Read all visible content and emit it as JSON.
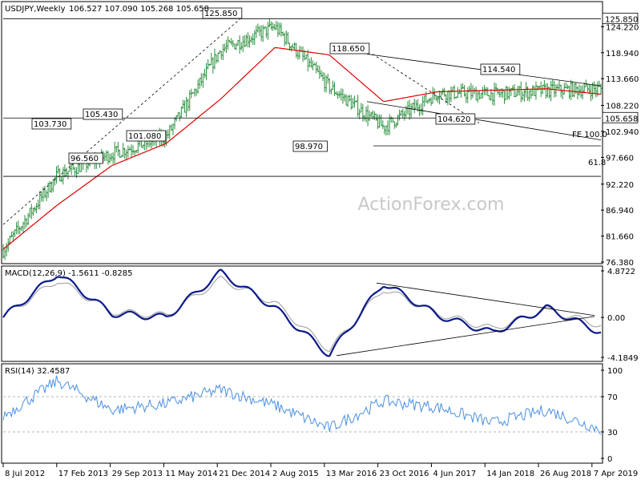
{
  "header": {
    "symbol": "USDJPY,Weekly",
    "ohlc": "106.527 107.090 105.268 105.658"
  },
  "watermark": "ActionForex.com",
  "chart_data": [
    {
      "type": "candlestick",
      "name": "price",
      "ylim": [
        76.38,
        129.0
      ],
      "y_ticks": [
        {
          "value": 124.22,
          "label": "124.220"
        },
        {
          "value": 118.94,
          "label": "118.940"
        },
        {
          "value": 113.66,
          "label": "113.660"
        },
        {
          "value": 108.22,
          "label": "108.220"
        },
        {
          "value": 102.94,
          "label": "102.940"
        },
        {
          "value": 97.66,
          "label": "97.660"
        },
        {
          "value": 92.22,
          "label": "92.220"
        },
        {
          "value": 86.94,
          "label": "86.940"
        },
        {
          "value": 81.66,
          "label": "81.660"
        },
        {
          "value": 76.38,
          "label": "76.380"
        }
      ],
      "price_markers": [
        {
          "value": 125.85,
          "label": "125.850"
        },
        {
          "value": 105.658,
          "label": "105.658"
        }
      ],
      "annotations": [
        {
          "label": "125.850",
          "x": "21 Dec 2014",
          "value": 125.85
        },
        {
          "label": "118.650",
          "x": "Jun 2016",
          "value": 118.65
        },
        {
          "label": "114.540",
          "x": "Sep 2018",
          "value": 114.54
        },
        {
          "label": "105.430",
          "x": "Sep 2013",
          "value": 105.43
        },
        {
          "label": "103.730",
          "x": "Feb 2013",
          "value": 103.73
        },
        {
          "label": "104.620",
          "x": "Mar 2018",
          "value": 104.62
        },
        {
          "label": "101.080",
          "x": "Jan 2014",
          "value": 101.08
        },
        {
          "label": "96.560",
          "x": "Jul 2013",
          "value": 96.56
        },
        {
          "label": "98.970",
          "x": "Jun 2016",
          "value": 98.97
        },
        {
          "label": "FE 100.0",
          "x": "Apr 2019",
          "value": 100.0
        },
        {
          "label": "61.8",
          "x": "Apr 2019",
          "value": 93.8
        }
      ],
      "horizontal_levels": [
        125.85,
        105.658,
        100.0,
        93.8
      ],
      "series": [
        {
          "name": "",
          "kind": "ohlc-close",
          "x": [
            "8 Jul 2012",
            "17 Feb 2013",
            "29 Sep 2013",
            "11 May 2014",
            "21 Dec 2014",
            "2 Aug 2015",
            "13 Mar 2016",
            "23 Oct 2016",
            "4 Jun 2017",
            "14 Jan 2018",
            "26 Aug 2018",
            "7 Apr 2019"
          ],
          "values": [
            78.8,
            94.0,
            98.4,
            101.8,
            119.5,
            124.2,
            112.0,
            103.8,
            110.8,
            110.5,
            111.2,
            111.6
          ]
        },
        {
          "name": "",
          "kind": "moving-average",
          "color": "#e00000",
          "values": [
            79.0,
            88.0,
            96.0,
            100.5,
            109.5,
            120.0,
            118.5,
            109.0,
            111.0,
            111.3,
            111.6,
            110.5
          ]
        }
      ]
    },
    {
      "type": "line",
      "name": "MACD",
      "legend": "MACD(12,26,9) -1.5611 -0.8285",
      "y_ticks": [
        {
          "value": 4.8722,
          "label": "4.8722"
        },
        {
          "value": 0.0,
          "label": "0.00"
        },
        {
          "value": -4.1849,
          "label": "-4.1849"
        }
      ],
      "series": [
        {
          "name": "",
          "color": "#0b1a8a",
          "values": [
            0.0,
            4.6,
            0.4,
            0.0,
            4.7,
            1.0,
            -3.9,
            3.6,
            0.2,
            -1.6,
            1.0,
            -1.56
          ]
        },
        {
          "name": "",
          "color": "#9a9a9a",
          "values": [
            0.1,
            3.9,
            0.6,
            0.2,
            4.0,
            1.5,
            -3.4,
            3.0,
            0.4,
            -1.2,
            0.8,
            -0.83
          ]
        }
      ]
    },
    {
      "type": "line",
      "name": "RSI",
      "legend": "RSI(14) 32.4587",
      "ylim": [
        0,
        100
      ],
      "y_ticks": [
        {
          "value": 100,
          "label": "100"
        },
        {
          "value": 70,
          "label": "70"
        },
        {
          "value": 30,
          "label": "30"
        },
        {
          "value": 0,
          "label": "0"
        }
      ],
      "series": [
        {
          "name": "",
          "color": "#4a90e2",
          "values": [
            48,
            88,
            55,
            62,
            78,
            60,
            34,
            65,
            58,
            40,
            55,
            32.46
          ]
        }
      ]
    }
  ],
  "x_axis": {
    "tick_labels": [
      "8 Jul 2012",
      "17 Feb 2013",
      "29 Sep 2013",
      "11 May 2014",
      "21 Dec 2014",
      "2 Aug 2015",
      "13 Mar 2016",
      "23 Oct 2016",
      "4 Jun 2017",
      "14 Jan 2018",
      "26 Aug 2018",
      "7 Apr 2019"
    ]
  }
}
